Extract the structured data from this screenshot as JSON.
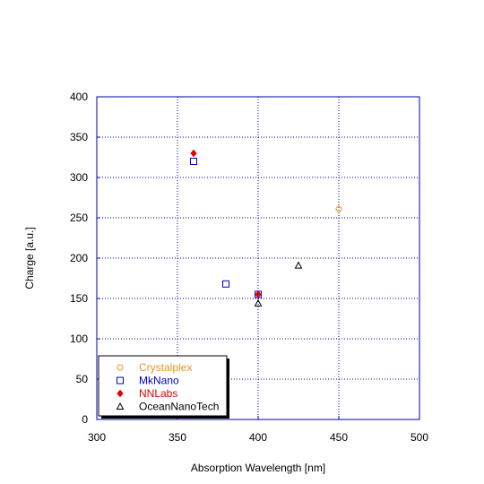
{
  "chart_data": {
    "type": "scatter",
    "xlabel": "Absorption Wavelength [nm]",
    "ylabel": "Charge [a.u.]",
    "xlim": [
      300,
      500
    ],
    "ylim": [
      0,
      400
    ],
    "x_ticks": [
      300,
      350,
      400,
      450,
      500
    ],
    "y_ticks": [
      0,
      50,
      100,
      150,
      200,
      250,
      300,
      350,
      400
    ],
    "grid": true,
    "legend_position": "bottom-left",
    "series": [
      {
        "name": "Crystalplex",
        "marker": "circle-open",
        "color": "#e8922a",
        "points": [
          {
            "x": 450,
            "y": 261
          }
        ]
      },
      {
        "name": "MkNano",
        "marker": "square-open",
        "color": "#0000cc",
        "points": [
          {
            "x": 360,
            "y": 320
          },
          {
            "x": 380,
            "y": 168
          },
          {
            "x": 400,
            "y": 155
          }
        ]
      },
      {
        "name": "NNLabs",
        "marker": "diamond-filled",
        "color": "#e00000",
        "points": [
          {
            "x": 360,
            "y": 330
          },
          {
            "x": 400,
            "y": 155
          }
        ]
      },
      {
        "name": "OceanNanoTech",
        "marker": "triangle-open",
        "color": "#000000",
        "points": [
          {
            "x": 400,
            "y": 144
          },
          {
            "x": 425,
            "y": 191
          }
        ]
      }
    ]
  }
}
